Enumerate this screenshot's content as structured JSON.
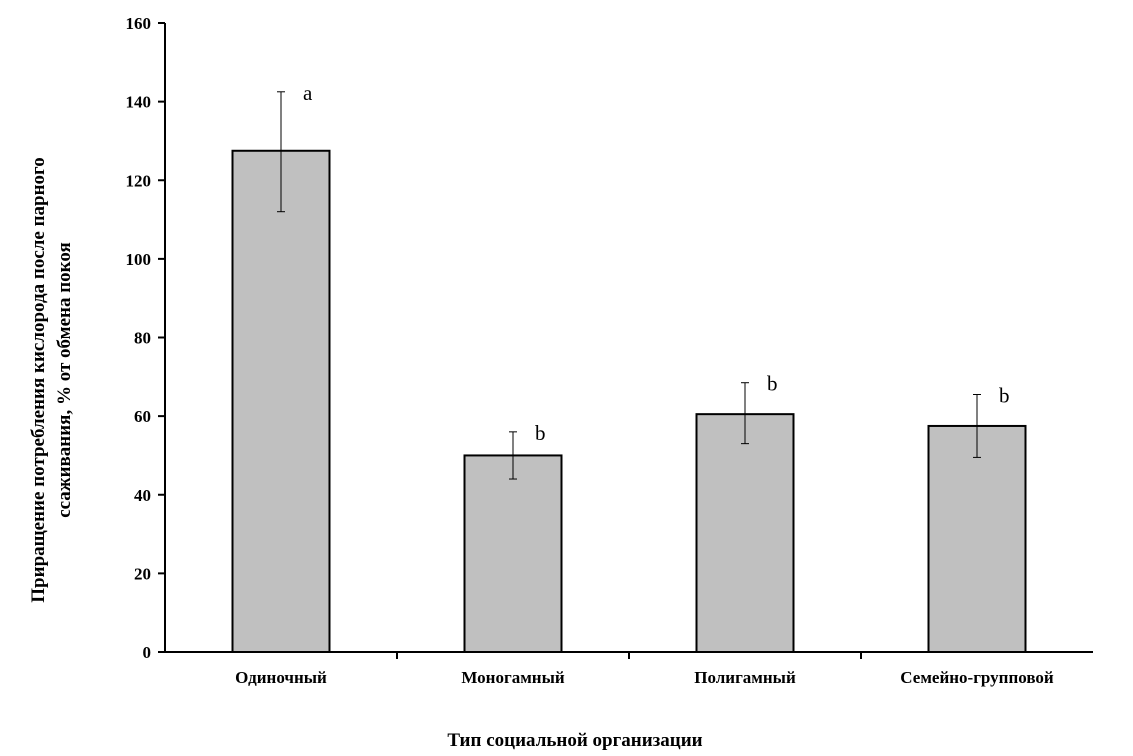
{
  "chart_data": {
    "type": "bar",
    "title": "",
    "xlabel": "Тип социальной организации",
    "ylabel_lines": [
      "Приращение потребления кислорода после парного",
      "ссаживания, % от обмена покоя"
    ],
    "categories": [
      "Одиночный",
      "Моногамный",
      "Полигамный",
      "Семейно-групповой"
    ],
    "values": [
      127.5,
      50,
      60.5,
      57.5
    ],
    "error_low": [
      112,
      44,
      53,
      49.5
    ],
    "error_high": [
      142.5,
      56,
      68.5,
      65.5
    ],
    "significance_labels": [
      "a",
      "b",
      "b",
      "b"
    ],
    "ylim": [
      0,
      160
    ],
    "yticks": [
      0,
      20,
      40,
      60,
      80,
      100,
      120,
      140,
      160
    ],
    "bar_color": "#c0c0c0",
    "grid": false,
    "legend": "none"
  }
}
